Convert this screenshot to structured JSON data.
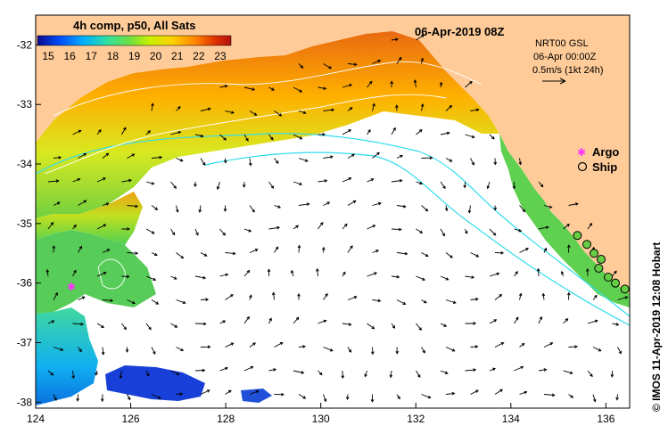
{
  "map": {
    "title": "06-Apr-2019 08Z",
    "colorbar": {
      "title": "4h comp, p50, All Sats",
      "ticks": [
        "15",
        "16",
        "17",
        "18",
        "19",
        "20",
        "21",
        "22",
        "23"
      ],
      "range": [
        14.5,
        23.5
      ],
      "colors": [
        "#0a0a8c",
        "#0050ff",
        "#00b0ff",
        "#30e0a0",
        "#70e040",
        "#c8f000",
        "#ffd000",
        "#ff8000",
        "#e03000",
        "#b01010"
      ]
    },
    "current_info": {
      "line1": "NRT00 GSL",
      "line2": "06-Apr 00:00Z",
      "line3": "0.5m/s (1kt 24h)"
    },
    "legend": {
      "argo_label": "Argo",
      "ship_label": "Ship",
      "argo_color": "#ff33ff",
      "ship_color": "#000000"
    },
    "x_ticks": [
      "124",
      "126",
      "128",
      "130",
      "132",
      "134",
      "136"
    ],
    "y_ticks": [
      "-32",
      "-33",
      "-34",
      "-35",
      "-36",
      "-37",
      "-38"
    ],
    "lon_range": [
      124,
      136.5
    ],
    "lat_range": [
      -31.5,
      -38.1
    ],
    "credit": "© IMOS 11-Apr-2019 12:08 Hobart",
    "colors": {
      "land": "#ffcc99",
      "no_data": "#ffffff",
      "isobath": "#33ddee",
      "contour": "#ffffff"
    },
    "argo_floats": [
      {
        "lon": 124.75,
        "lat": -36.05
      }
    ],
    "ship_obs": [
      {
        "lon": 135.4,
        "lat": -35.2
      },
      {
        "lon": 135.6,
        "lat": -35.35
      },
      {
        "lon": 135.75,
        "lat": -35.5
      },
      {
        "lon": 135.9,
        "lat": -35.6
      },
      {
        "lon": 135.85,
        "lat": -35.75
      },
      {
        "lon": 136.05,
        "lat": -35.9
      },
      {
        "lon": 136.2,
        "lat": -36.0
      },
      {
        "lon": 136.4,
        "lat": -36.1
      }
    ]
  }
}
